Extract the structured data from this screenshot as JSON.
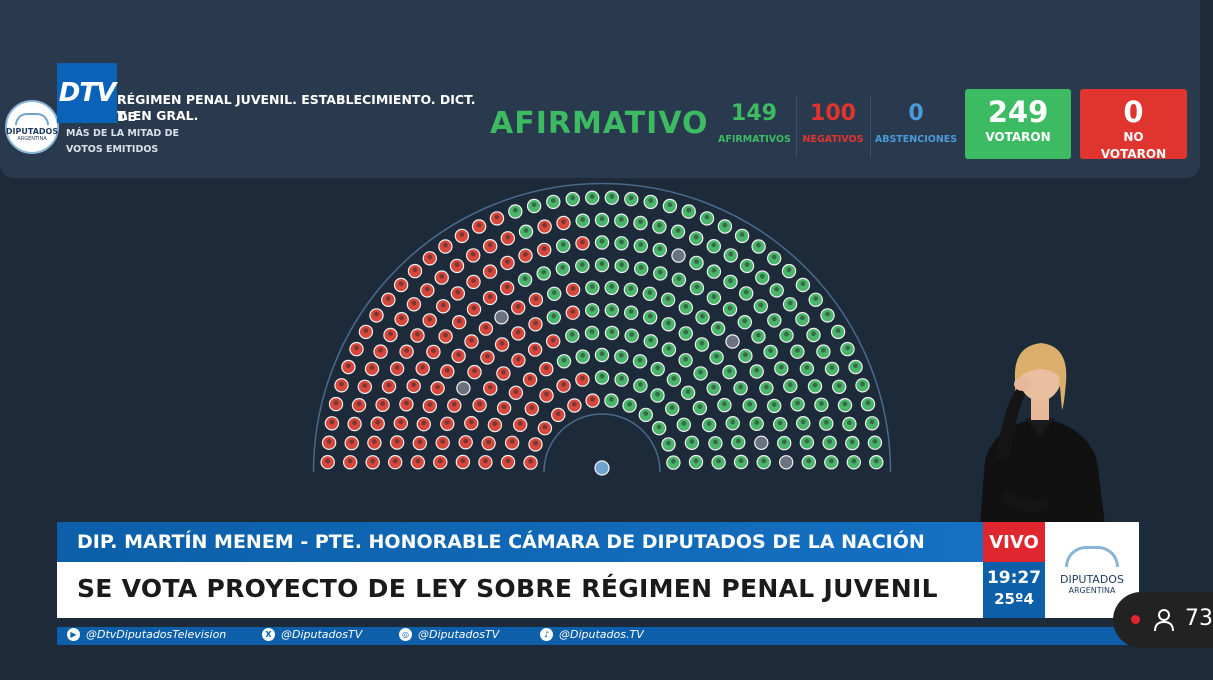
{
  "header": {
    "logo": "DTV",
    "topic_line1": "RÉGIMEN PENAL JUVENIL. ESTABLECIMIENTO. DICT. DE",
    "topic_line2": "T. EN GRAL.",
    "majority_line1": "MÁS DE LA MITAD DE",
    "majority_line2": "VOTOS EMITIDOS",
    "result": "AFIRMATIVO",
    "seal_line1": "DIPUTADOS",
    "seal_line2": "ARGENTINA"
  },
  "counts": {
    "affirmative": {
      "value": "149",
      "label": "AFIRMATIVOS",
      "color": "#3dbb63"
    },
    "negative": {
      "value": "100",
      "label": "NEGATIVOS",
      "color": "#e0352e"
    },
    "abstentions": {
      "value": "0",
      "label": "ABSTENCIONES",
      "color": "#4a9ad8"
    },
    "voted": {
      "value": "249",
      "label": "VOTARON",
      "color": "#3dbb63"
    },
    "not_voted": {
      "value": "0",
      "label_line1": "NO",
      "label_line2": "VOTARON",
      "color": "#e0352e"
    }
  },
  "chamber": {
    "rows": 10,
    "red_color": "#d8473c",
    "green_color": "#49b56a",
    "absent_color": "#6b7380"
  },
  "lower_third": {
    "speaker": "DIP. MARTÍN MENEM - PTE. HONORABLE CÁMARA DE DIPUTADOS DE LA NACIÓN",
    "headline": "SE VOTA PROYECTO DE LEY SOBRE RÉGIMEN PENAL JUVENIL",
    "live": "VIVO",
    "time": "19:27",
    "temp": "25º4",
    "brand_line1": "DIPUTADOS",
    "brand_line2": "ARGENTINA"
  },
  "social": [
    {
      "icon": "youtube-icon",
      "glyph": "▶",
      "handle": "@DtvDiputadosTelevision"
    },
    {
      "icon": "x-icon",
      "glyph": "X",
      "handle": "@DiputadosTV"
    },
    {
      "icon": "instagram-icon",
      "glyph": "◎",
      "handle": "@DiputadosTV"
    },
    {
      "icon": "tiktok-icon",
      "glyph": "♪",
      "handle": "@Diputados.TV"
    }
  ],
  "viewer_count": "73"
}
